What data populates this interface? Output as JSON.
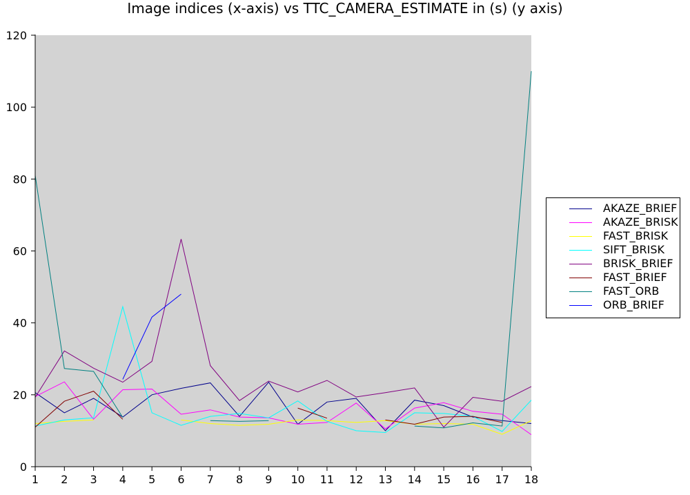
{
  "chart_data": {
    "type": "line",
    "title": "Image indices (x-axis) vs TTC_CAMERA_ESTIMATE in (s) (y axis)",
    "xlabel": "",
    "ylabel": "",
    "x": [
      1,
      2,
      3,
      4,
      5,
      6,
      7,
      8,
      9,
      10,
      11,
      12,
      13,
      14,
      15,
      16,
      17,
      18
    ],
    "xlim": [
      1,
      18
    ],
    "ylim": [
      0,
      120
    ],
    "yticks": [
      0,
      20,
      40,
      60,
      80,
      100,
      120
    ],
    "plot_background": "#d3d3d3",
    "grid": false,
    "legend_position": "right",
    "series": [
      {
        "name": "AKAZE_BRIEF",
        "color": "#00008b",
        "values": [
          20.6,
          15.0,
          19.0,
          13.8,
          20.0,
          21.8,
          23.3,
          14.0,
          23.5,
          11.8,
          18.0,
          19.0,
          10.0,
          18.5,
          17.0,
          13.8,
          12.8,
          12.0
        ]
      },
      {
        "name": "AKAZE_BRISK",
        "color": "#ff00ff",
        "values": [
          19.5,
          23.6,
          13.2,
          21.4,
          21.6,
          14.6,
          15.8,
          13.8,
          13.6,
          11.8,
          12.3,
          17.7,
          10.5,
          16.3,
          17.8,
          15.4,
          14.6,
          8.9
        ]
      },
      {
        "name": "FAST_BRISK",
        "color": "#ffff00",
        "values": [
          12.0,
          12.6,
          13.0,
          null,
          null,
          13.0,
          12.0,
          11.5,
          11.8,
          13.0,
          12.8,
          12.3,
          12.8,
          11.8,
          12.0,
          11.8,
          9.0,
          12.8
        ]
      },
      {
        "name": "SIFT_BRISK",
        "color": "#00ffff",
        "values": [
          11.3,
          13.0,
          13.6,
          44.5,
          15.0,
          11.5,
          14.0,
          14.8,
          13.6,
          18.3,
          12.6,
          10.0,
          9.5,
          15.0,
          14.8,
          14.0,
          9.8,
          18.5
        ]
      },
      {
        "name": "BRISK_BRIEF",
        "color": "#800080",
        "values": [
          19.3,
          32.2,
          27.4,
          23.5,
          29.3,
          63.3,
          28.1,
          18.4,
          23.8,
          20.8,
          24.0,
          19.4,
          20.6,
          21.9,
          11.0,
          19.3,
          18.2,
          22.3
        ]
      },
      {
        "name": "FAST_BRIEF",
        "color": "#800000",
        "values": [
          11.0,
          18.2,
          21.0,
          13.2,
          null,
          null,
          null,
          null,
          null,
          16.3,
          13.5,
          null,
          13.0,
          11.8,
          13.8,
          14.0,
          12.3,
          null
        ]
      },
      {
        "name": "FAST_ORB",
        "color": "#008080",
        "values": [
          81.0,
          27.3,
          26.5,
          13.7,
          null,
          null,
          12.8,
          12.6,
          12.8,
          null,
          null,
          null,
          null,
          11.3,
          10.8,
          12.2,
          11.3,
          110.0
        ]
      },
      {
        "name": "ORB_BRIEF",
        "color": "#0000ff",
        "values": [
          null,
          null,
          null,
          24.3,
          41.6,
          48.0,
          null,
          null,
          null,
          null,
          null,
          null,
          null,
          null,
          null,
          null,
          null,
          null
        ]
      }
    ]
  }
}
